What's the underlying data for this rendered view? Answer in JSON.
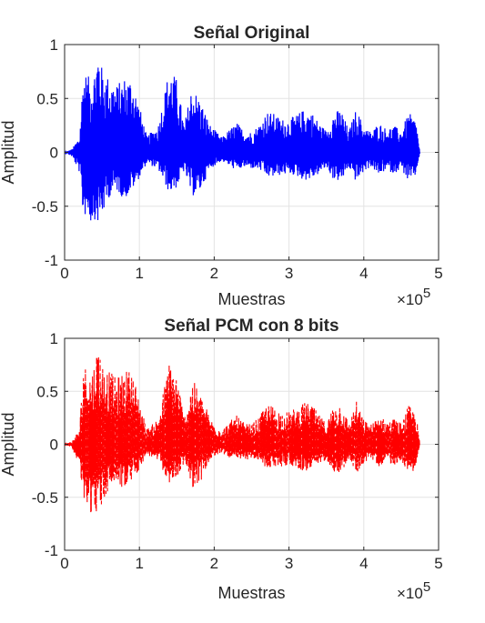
{
  "chart_data": [
    {
      "type": "line",
      "title": "Señal Original",
      "xlabel": "Muestras",
      "ylabel": "Amplitud",
      "xlim": [
        0,
        500000
      ],
      "ylim": [
        -1,
        1
      ],
      "x_ticks": [
        0,
        1,
        2,
        3,
        4,
        5
      ],
      "x_tick_labels": [
        "0",
        "1",
        "2",
        "3",
        "4",
        "5"
      ],
      "x_multiplier": "×10",
      "x_multiplier_exp": "5",
      "y_ticks": [
        -1,
        -0.5,
        0,
        0.5,
        1
      ],
      "y_tick_labels": [
        "-1",
        "-0.5",
        "0",
        "0.5",
        "1"
      ],
      "grid": true,
      "line_style": "solid",
      "color": "#0000ff",
      "x": [
        0,
        10000,
        20000,
        25000,
        30000,
        35000,
        40000,
        45000,
        50000,
        60000,
        70000,
        80000,
        90000,
        95000,
        110000,
        125000,
        140000,
        150000,
        160000,
        170000,
        180000,
        195000,
        210000,
        230000,
        240000,
        250000,
        260000,
        270000,
        280000,
        290000,
        300000,
        310000,
        320000,
        330000,
        340000,
        350000,
        360000,
        370000,
        380000,
        390000,
        400000,
        410000,
        420000,
        430000,
        440000,
        450000,
        460000,
        465000,
        470000,
        475000
      ],
      "upper": [
        0,
        0.03,
        0.15,
        0.78,
        0.72,
        0.68,
        0.78,
        1.0,
        0.78,
        0.69,
        0.63,
        0.7,
        0.7,
        0.57,
        0.15,
        0.25,
        0.79,
        0.68,
        0.25,
        0.62,
        0.51,
        0.25,
        0.14,
        0.28,
        0.2,
        0.19,
        0.26,
        0.38,
        0.36,
        0.31,
        0.31,
        0.35,
        0.4,
        0.38,
        0.28,
        0.2,
        0.38,
        0.4,
        0.2,
        0.41,
        0.24,
        0.19,
        0.28,
        0.22,
        0.25,
        0.2,
        0.37,
        0.33,
        0.3,
        0.0
      ],
      "lower": [
        0,
        -0.04,
        -0.19,
        -0.62,
        -0.56,
        -0.66,
        -0.62,
        -0.67,
        -0.6,
        -0.41,
        -0.36,
        -0.44,
        -0.35,
        -0.3,
        -0.1,
        -0.16,
        -0.38,
        -0.33,
        -0.17,
        -0.41,
        -0.38,
        -0.15,
        -0.08,
        -0.17,
        -0.14,
        -0.15,
        -0.16,
        -0.23,
        -0.23,
        -0.21,
        -0.2,
        -0.22,
        -0.26,
        -0.25,
        -0.2,
        -0.14,
        -0.26,
        -0.27,
        -0.14,
        -0.28,
        -0.18,
        -0.13,
        -0.22,
        -0.16,
        -0.2,
        -0.15,
        -0.28,
        -0.26,
        -0.21,
        0.0
      ]
    },
    {
      "type": "line",
      "title": "Señal PCM con 8 bits",
      "xlabel": "Muestras",
      "ylabel": "Amplitud",
      "xlim": [
        0,
        500000
      ],
      "ylim": [
        -1,
        1
      ],
      "x_ticks": [
        0,
        1,
        2,
        3,
        4,
        5
      ],
      "x_tick_labels": [
        "0",
        "1",
        "2",
        "3",
        "4",
        "5"
      ],
      "x_multiplier": "×10",
      "x_multiplier_exp": "5",
      "y_ticks": [
        -1,
        -0.5,
        0,
        0.5,
        1
      ],
      "y_tick_labels": [
        "-1",
        "-0.5",
        "0",
        "0.5",
        "1"
      ],
      "grid": true,
      "line_style": "dashed",
      "color": "#ff0000",
      "x": [
        0,
        10000,
        20000,
        25000,
        30000,
        35000,
        40000,
        45000,
        50000,
        60000,
        70000,
        80000,
        90000,
        95000,
        110000,
        125000,
        140000,
        150000,
        160000,
        170000,
        180000,
        195000,
        210000,
        230000,
        240000,
        250000,
        260000,
        270000,
        280000,
        290000,
        300000,
        310000,
        320000,
        330000,
        340000,
        350000,
        360000,
        370000,
        380000,
        390000,
        400000,
        410000,
        420000,
        430000,
        440000,
        450000,
        460000,
        465000,
        470000,
        475000
      ],
      "upper": [
        0,
        0.03,
        0.15,
        0.78,
        0.72,
        0.68,
        0.78,
        1.0,
        0.78,
        0.69,
        0.63,
        0.7,
        0.7,
        0.57,
        0.15,
        0.25,
        0.79,
        0.68,
        0.25,
        0.62,
        0.51,
        0.25,
        0.14,
        0.28,
        0.2,
        0.19,
        0.26,
        0.38,
        0.36,
        0.31,
        0.31,
        0.35,
        0.4,
        0.38,
        0.28,
        0.2,
        0.38,
        0.4,
        0.2,
        0.41,
        0.24,
        0.19,
        0.28,
        0.22,
        0.25,
        0.2,
        0.37,
        0.33,
        0.3,
        0.0
      ],
      "lower": [
        0,
        -0.04,
        -0.19,
        -0.62,
        -0.56,
        -0.66,
        -0.62,
        -0.67,
        -0.6,
        -0.41,
        -0.36,
        -0.44,
        -0.35,
        -0.3,
        -0.1,
        -0.16,
        -0.38,
        -0.33,
        -0.17,
        -0.41,
        -0.38,
        -0.15,
        -0.08,
        -0.17,
        -0.14,
        -0.15,
        -0.16,
        -0.23,
        -0.23,
        -0.21,
        -0.2,
        -0.22,
        -0.26,
        -0.25,
        -0.2,
        -0.14,
        -0.26,
        -0.27,
        -0.14,
        -0.28,
        -0.18,
        -0.13,
        -0.22,
        -0.16,
        -0.2,
        -0.15,
        -0.28,
        -0.26,
        -0.21,
        0.0
      ]
    }
  ]
}
